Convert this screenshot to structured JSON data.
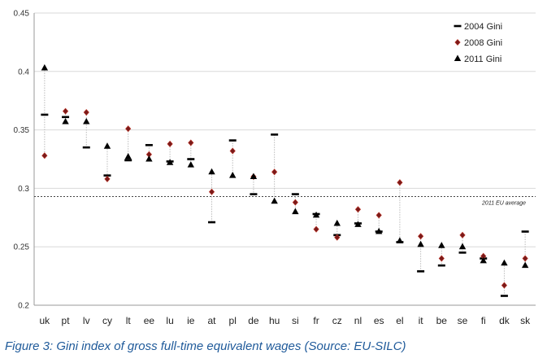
{
  "chart_data": {
    "type": "scatter",
    "title": "",
    "xlabel": "",
    "ylabel": "",
    "ylim": [
      0.2,
      0.45
    ],
    "yticks": [
      "0.2",
      "0.25",
      "0.3",
      "0.35",
      "0.4",
      "0.45"
    ],
    "grid": true,
    "legend_position": "top-right",
    "categories": [
      "uk",
      "pt",
      "lv",
      "cy",
      "lt",
      "ee",
      "lu",
      "ie",
      "at",
      "pl",
      "de",
      "hu",
      "si",
      "fr",
      "cz",
      "nl",
      "es",
      "el",
      "it",
      "be",
      "se",
      "fi",
      "dk",
      "sk"
    ],
    "series": [
      {
        "name": "2004 Gini",
        "marker": "dash",
        "color": "#000000",
        "values": [
          0.363,
          0.361,
          0.335,
          0.311,
          0.324,
          0.337,
          0.323,
          0.325,
          0.271,
          0.341,
          0.295,
          0.346,
          0.295,
          0.278,
          0.26,
          0.27,
          0.263,
          0.254,
          0.229,
          0.234,
          0.245,
          0.24,
          0.208,
          0.263
        ]
      },
      {
        "name": "2008 Gini",
        "marker": "diamond",
        "color": "#7a1a1a",
        "values": [
          0.328,
          0.366,
          0.365,
          0.308,
          0.351,
          0.329,
          0.338,
          0.339,
          0.297,
          0.332,
          0.31,
          0.314,
          0.288,
          0.265,
          0.258,
          0.282,
          0.277,
          0.305,
          0.259,
          0.24,
          0.26,
          0.242,
          0.217,
          0.24
        ]
      },
      {
        "name": "2011 Gini",
        "marker": "triangle",
        "color": "#000000",
        "values": [
          0.403,
          0.357,
          0.357,
          0.336,
          0.327,
          0.325,
          0.322,
          0.32,
          0.314,
          0.311,
          0.31,
          0.289,
          0.28,
          0.277,
          0.27,
          0.269,
          0.263,
          0.255,
          0.252,
          0.251,
          0.25,
          0.238,
          0.236,
          0.234
        ]
      }
    ],
    "reference_line": {
      "value": 0.293,
      "label": "2011 EU average",
      "style": "dashed"
    }
  },
  "caption": "Figure 3: Gini index of gross full-time equivalent wages (Source: EU-SILC)"
}
